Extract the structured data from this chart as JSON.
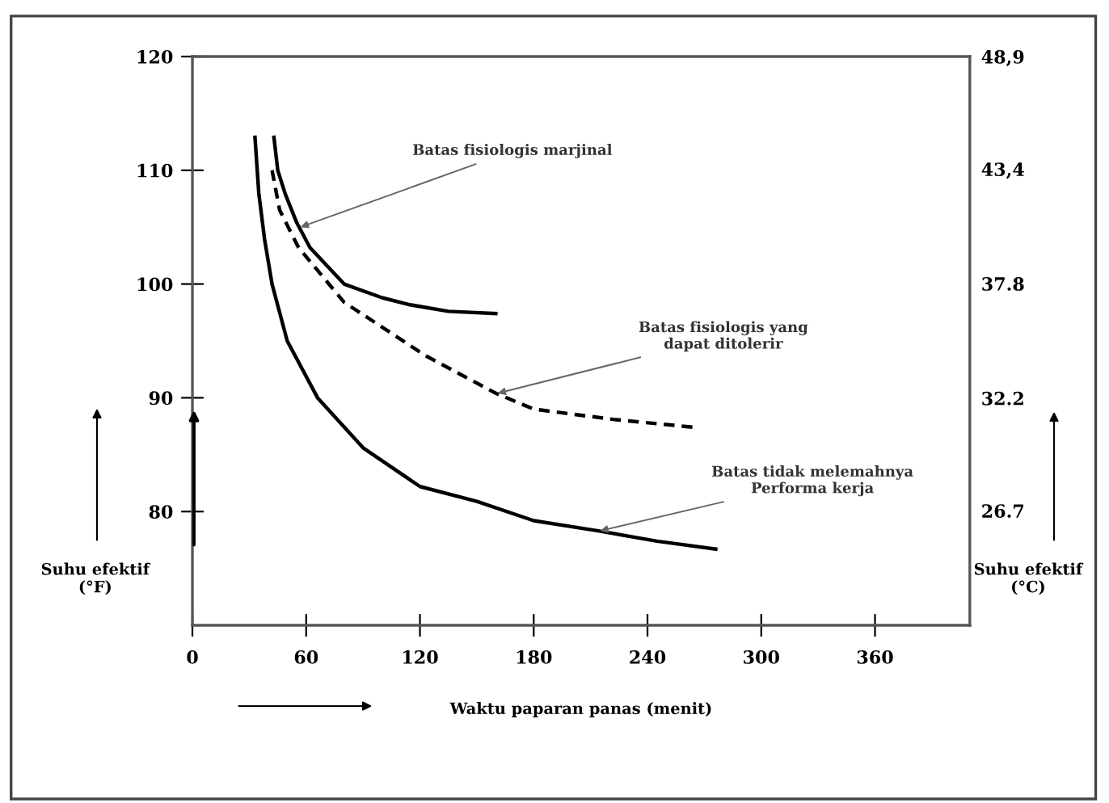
{
  "chart_data": {
    "type": "line",
    "xlabel": "Waktu paparan panas (menit)",
    "ylabel": "Suhu efektif\n(°F)",
    "y2label": "Suhu efektif\n(°C)",
    "xlim": [
      0,
      410
    ],
    "xticks": [
      0,
      60,
      120,
      180,
      240,
      300,
      360
    ],
    "ylim": [
      70,
      120
    ],
    "yticks": [
      80,
      90,
      100,
      110,
      120
    ],
    "y2lim": [
      21.1,
      48.9
    ],
    "y2ticks": [
      {
        "value": 26.7,
        "label": "26.7"
      },
      {
        "value": 32.2,
        "label": "32.2"
      },
      {
        "value": 37.8,
        "label": "37.8"
      },
      {
        "value": 43.4,
        "label": "43,4"
      },
      {
        "value": 48.9,
        "label": "48,9"
      }
    ],
    "marker": "none",
    "legend": false,
    "grid": false,
    "series": [
      {
        "color": "#000000",
        "line_style": "solid",
        "x": [
          43,
          45,
          49,
          55,
          62,
          80,
          100,
          114,
          135,
          160
        ],
        "values": [
          112.9,
          110,
          107.9,
          105.4,
          103.2,
          100,
          98.8,
          98.2,
          97.6,
          97.4
        ]
      },
      {
        "color": "#000000",
        "line_style": "dashed",
        "x": [
          42,
          46,
          56,
          80,
          123,
          160,
          180,
          222,
          265
        ],
        "values": [
          110,
          106.5,
          103.2,
          98.4,
          93.7,
          90.4,
          89.0,
          88.1,
          87.4
        ]
      },
      {
        "color": "#000000",
        "line_style": "solid",
        "x": [
          33,
          35,
          38,
          42,
          50,
          66,
          90,
          120,
          150,
          180,
          214,
          245,
          276
        ],
        "values": [
          112.9,
          108,
          104,
          100,
          95,
          90,
          85.6,
          82.2,
          80.9,
          79.2,
          78.3,
          77.4,
          76.7
        ]
      }
    ],
    "annotations": [
      {
        "text": "Batas fisiologis marjinal",
        "x": 57,
        "y": 105
      },
      {
        "text": "Batas fisiologis yang\ndapat ditolerir",
        "x": 161,
        "y": 90.4
      },
      {
        "text": "Batas tidak melemahnya\nPerforma kerja",
        "x": 215,
        "y": 78.3
      }
    ]
  }
}
